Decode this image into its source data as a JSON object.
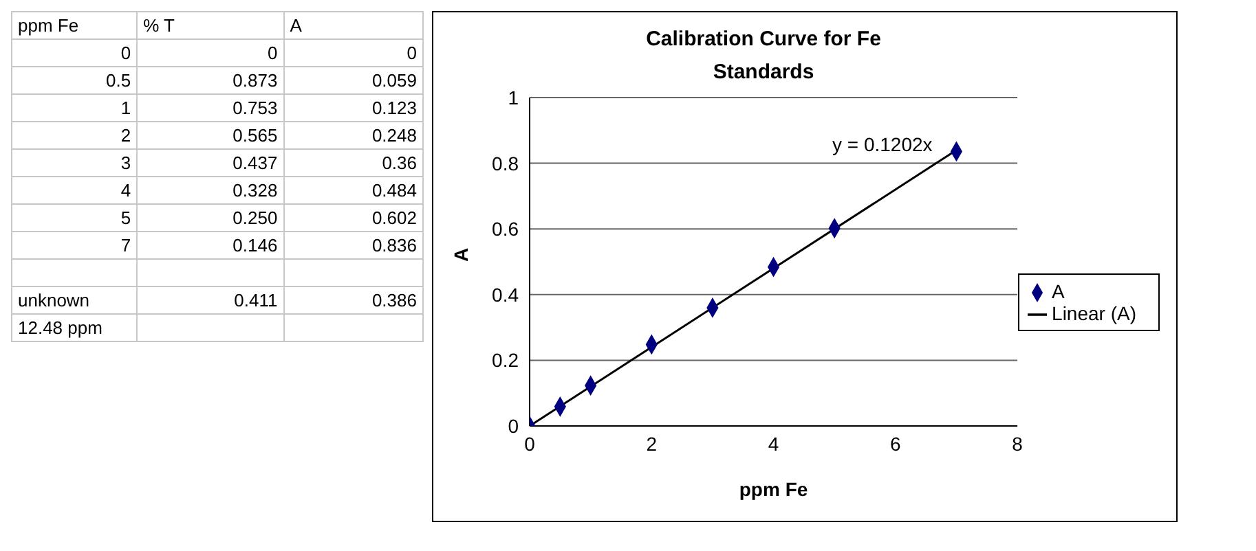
{
  "chart_data": [
    {
      "type": "other",
      "annotations": [
        "ppm Fe",
        "% T",
        "A",
        "0",
        "0",
        "0",
        "0.5",
        "0.873",
        "0.059",
        "1",
        "0.753",
        "0.123",
        "2",
        "0.565",
        "0.248",
        "3",
        "0.437",
        "0.36",
        "4",
        "0.328",
        "0.484",
        "5",
        "0.250",
        "0.602",
        "7",
        "0.146",
        "0.836",
        null,
        null,
        null,
        "unknown",
        "0.411",
        "0.386",
        "12.48 ppm",
        null,
        null
      ]
    },
    {
      "type": "scatter",
      "title": "Calibration Curve for Fe Standards",
      "xlabel": "ppm Fe",
      "ylabel": "A",
      "x": [
        0,
        0.5,
        1,
        2,
        3,
        4,
        5,
        7
      ],
      "series": [
        {
          "name": "A",
          "type": "scatter",
          "color": "#000080",
          "marker": "diamond",
          "values": [
            0,
            0.059,
            0.123,
            0.248,
            0.36,
            0.484,
            0.602,
            0.836
          ]
        },
        {
          "name": "Linear (A)",
          "type": "line",
          "color": "#000000",
          "x": [
            0,
            7
          ],
          "values": [
            0,
            0.84
          ],
          "marker": "none"
        }
      ],
      "xlim": [
        0,
        8
      ],
      "xticks": [
        0,
        2,
        4,
        6,
        8
      ],
      "ylim": [
        0,
        1
      ],
      "yticks": [
        0,
        0.2,
        0.4,
        0.6,
        0.8,
        1
      ],
      "grid": "y",
      "legend": "right",
      "annotations": [
        "y = 0.1202x"
      ]
    }
  ]
}
